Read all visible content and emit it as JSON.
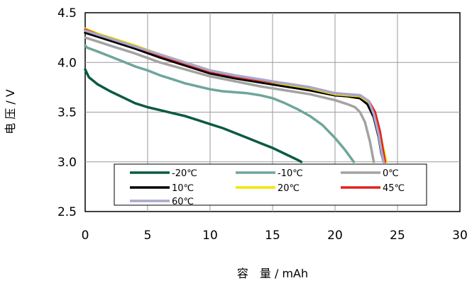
{
  "chart_data": {
    "type": "line",
    "xlabel": "容　量 / mAh",
    "ylabel": "电 压 / V",
    "xlim": [
      0,
      30
    ],
    "ylim": [
      2.5,
      4.5
    ],
    "xticks": [
      0,
      5,
      10,
      15,
      20,
      25,
      30
    ],
    "xtick_labels": [
      "0",
      "5",
      "10",
      "15",
      "20",
      "25",
      "30"
    ],
    "yticks": [
      2.5,
      3.0,
      3.5,
      4.0,
      4.5
    ],
    "ytick_labels": [
      "2.5",
      "3.0",
      "3.5",
      "4.0",
      "4.5"
    ],
    "grid": true,
    "legend_position": "bottom",
    "series": [
      {
        "name": "-20℃",
        "color": "#0b5a45",
        "x": [
          0,
          0.15,
          0.3,
          1,
          2,
          3,
          4,
          5,
          6,
          7,
          8,
          9,
          10,
          11,
          12,
          13,
          14,
          15,
          16,
          17,
          17.3
        ],
        "y": [
          3.93,
          3.89,
          3.85,
          3.78,
          3.71,
          3.65,
          3.59,
          3.55,
          3.52,
          3.49,
          3.46,
          3.42,
          3.38,
          3.34,
          3.29,
          3.24,
          3.19,
          3.14,
          3.08,
          3.02,
          3.0
        ]
      },
      {
        "name": "-10℃",
        "color": "#6fa59b",
        "x": [
          0,
          0.15,
          1,
          2,
          3,
          4,
          5,
          6,
          7,
          8,
          9,
          10,
          11,
          12,
          13,
          14,
          15,
          16,
          17,
          18,
          19,
          20,
          20.8,
          21.5
        ],
        "y": [
          4.17,
          4.15,
          4.11,
          4.06,
          4.01,
          3.96,
          3.92,
          3.87,
          3.83,
          3.79,
          3.76,
          3.73,
          3.71,
          3.7,
          3.69,
          3.67,
          3.64,
          3.59,
          3.53,
          3.46,
          3.37,
          3.24,
          3.12,
          3.0
        ]
      },
      {
        "name": "0℃",
        "color": "#a3a3a3",
        "x": [
          0,
          1,
          2,
          4,
          6,
          8,
          10,
          12,
          14,
          16,
          18,
          19,
          20,
          21,
          21.6,
          22,
          22.4,
          22.8,
          23.1
        ],
        "y": [
          4.25,
          4.21,
          4.17,
          4.09,
          4.0,
          3.93,
          3.86,
          3.81,
          3.76,
          3.72,
          3.68,
          3.65,
          3.62,
          3.58,
          3.55,
          3.5,
          3.4,
          3.2,
          3.0
        ]
      },
      {
        "name": "10℃",
        "color": "#000000",
        "x": [
          0,
          1,
          2,
          4,
          6,
          8,
          10,
          12,
          14,
          16,
          18,
          20,
          21,
          22,
          22.6,
          23.1,
          23.5,
          23.7,
          23.9
        ],
        "y": [
          4.3,
          4.26,
          4.22,
          4.14,
          4.05,
          3.97,
          3.89,
          3.84,
          3.8,
          3.76,
          3.72,
          3.67,
          3.66,
          3.64,
          3.58,
          3.45,
          3.25,
          3.1,
          3.0
        ]
      },
      {
        "name": "20℃",
        "color": "#f2e600",
        "x": [
          0,
          1,
          2,
          4,
          6,
          8,
          10,
          12,
          14,
          16,
          18,
          20,
          21,
          22,
          22.7,
          23.2,
          23.6,
          23.9,
          24.1
        ],
        "y": [
          4.34,
          4.29,
          4.25,
          4.17,
          4.08,
          4.0,
          3.92,
          3.86,
          3.82,
          3.78,
          3.74,
          3.68,
          3.67,
          3.66,
          3.6,
          3.48,
          3.28,
          3.12,
          3.0
        ]
      },
      {
        "name": "45℃",
        "color": "#e32020",
        "x": [
          0,
          1,
          2,
          4,
          6,
          8,
          10,
          12,
          14,
          16,
          18,
          20,
          21,
          22,
          22.7,
          23.2,
          23.6,
          23.8,
          24.0
        ],
        "y": [
          4.33,
          4.28,
          4.24,
          4.16,
          4.07,
          3.99,
          3.91,
          3.86,
          3.82,
          3.79,
          3.75,
          3.69,
          3.68,
          3.67,
          3.61,
          3.5,
          3.3,
          3.14,
          3.0
        ]
      },
      {
        "name": "60℃",
        "color": "#a8a8cc",
        "x": [
          0,
          1,
          2,
          4,
          6,
          8,
          10,
          12,
          14,
          16,
          18,
          20,
          21,
          22,
          22.7,
          23.1,
          23.5,
          23.7,
          23.9
        ],
        "y": [
          4.32,
          4.28,
          4.24,
          4.16,
          4.08,
          4.0,
          3.92,
          3.87,
          3.83,
          3.79,
          3.75,
          3.69,
          3.68,
          3.67,
          3.61,
          3.48,
          3.27,
          3.12,
          3.0
        ]
      }
    ]
  }
}
